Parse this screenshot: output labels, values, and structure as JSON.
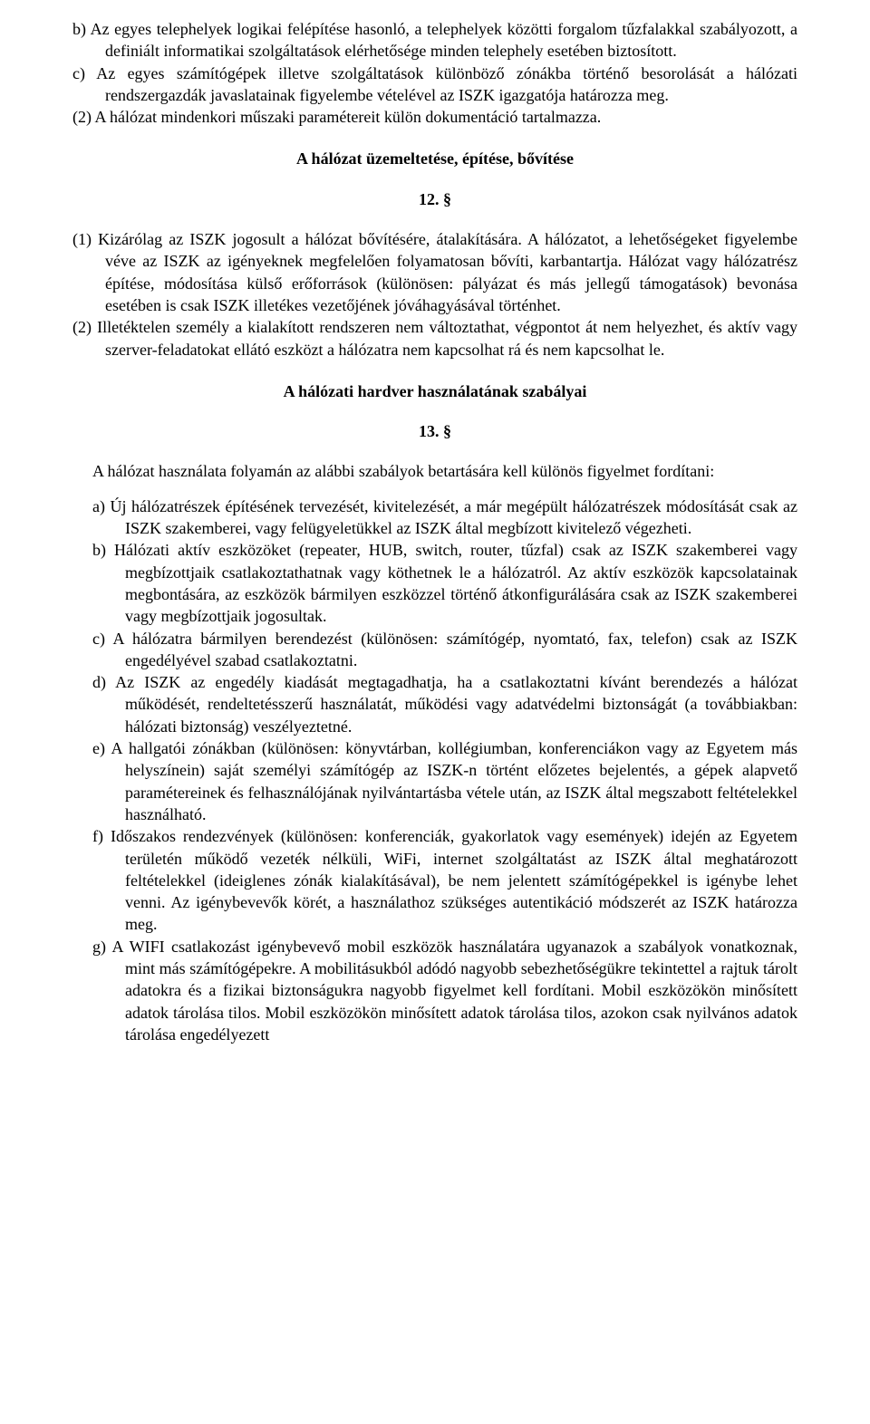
{
  "section11": {
    "item_b": "b) Az egyes telephelyek logikai felépítése hasonló, a telephelyek közötti forgalom tűzfalakkal szabályozott, a definiált informatikai szolgáltatások elérhetősége minden telephely esetében biztosított.",
    "item_c": "c) Az egyes számítógépek illetve szolgáltatások különböző zónákba történő besorolását a hálózati rendszergazdák javaslatainak figyelembe vételével az ISZK igazgatója határozza meg.",
    "para2": "(2) A hálózat mindenkori műszaki paramétereit külön dokumentáció tartalmazza."
  },
  "section12": {
    "title": "A hálózat üzemeltetése, építése, bővítése",
    "num": "12. §",
    "para1": "(1) Kizárólag az ISZK jogosult a hálózat bővítésére, átalakítására. A hálózatot, a lehetőségeket figyelembe véve az ISZK az igényeknek megfelelően folyamatosan bővíti, karbantartja. Hálózat vagy hálózatrész építése, módosítása külső erőforrások (különösen: pályázat és más jellegű támogatások) bevonása esetében is csak ISZK illetékes vezetőjének jóváhagyásával történhet.",
    "para2": "(2) Illetéktelen személy a kialakított rendszeren nem változtathat, végpontot át nem helyezhet, és aktív vagy szerver-feladatokat ellátó eszközt a hálózatra nem kapcsolhat rá és nem kapcsolhat le."
  },
  "section13": {
    "title": "A hálózati hardver használatának szabályai",
    "num": "13. §",
    "intro": "A hálózat használata folyamán az alábbi szabályok betartására kell különös figyelmet fordítani:",
    "a": "a) Új hálózatrészek építésének tervezését, kivitelezését, a már megépült hálózatrészek módosítását csak az ISZK szakemberei, vagy felügyeletükkel az ISZK által megbízott kivitelező végezheti.",
    "b": "b) Hálózati aktív eszközöket (repeater, HUB, switch, router, tűzfal) csak az ISZK szakemberei vagy megbízottjaik csatlakoztathatnak vagy köthetnek le a hálózatról. Az aktív eszközök kapcsolatainak megbontására, az eszközök bármilyen eszközzel történő átkonfigurálására csak az ISZK szakemberei vagy megbízottjaik jogosultak.",
    "c": "c) A hálózatra bármilyen berendezést (különösen: számítógép, nyomtató, fax, telefon) csak az ISZK engedélyével szabad csatlakoztatni.",
    "d": "d) Az ISZK az engedély kiadását megtagadhatja, ha a csatlakoztatni kívánt berendezés a hálózat működését, rendeltetésszerű használatát, működési vagy adatvédelmi biztonságát (a továbbiakban: hálózati biztonság) veszélyeztetné.",
    "e": "e) A hallgatói zónákban (különösen: könyvtárban, kollégiumban, konferenciákon vagy az Egyetem más helyszínein) saját személyi számítógép az ISZK-n történt előzetes bejelentés, a gépek alapvető paramétereinek és felhasználójának nyilvántartásba vétele után, az ISZK által megszabott feltételekkel használható.",
    "f": "f) Időszakos rendezvények (különösen: konferenciák, gyakorlatok vagy események) idején az Egyetem területén működő vezeték nélküli, WiFi, internet szolgáltatást az ISZK által meghatározott feltételekkel (ideiglenes zónák kialakításával), be nem jelentett számítógépekkel is igénybe lehet venni. Az igénybevevők körét, a használathoz szükséges autentikáció módszerét az ISZK határozza meg.",
    "g": "g) A WIFI csatlakozást igénybevevő mobil eszközök használatára ugyanazok a szabályok vonatkoznak, mint más számítógépekre. A mobilitásukból adódó nagyobb sebezhetőségükre tekintettel a rajtuk tárolt adatokra és a fizikai biztonságukra nagyobb figyelmet kell fordítani. Mobil eszközökön minősített adatok tárolása tilos. Mobil eszközökön minősített adatok tárolása tilos, azokon csak nyilvános adatok tárolása engedélyezett"
  }
}
